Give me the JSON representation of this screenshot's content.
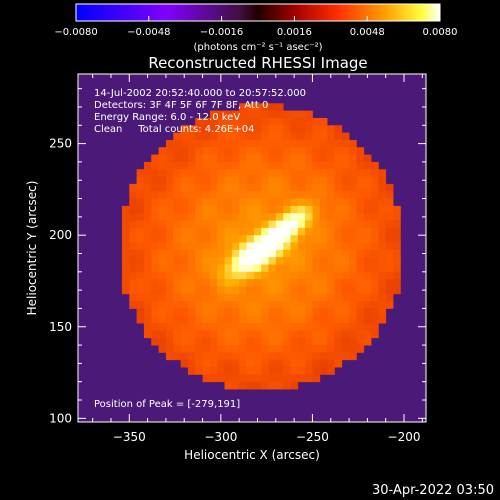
{
  "chart_data": {
    "type": "heatmap",
    "title": "Reconstructed RHESSI Image",
    "xlabel": "Heliocentric X (arcsec)",
    "ylabel": "Heliocentric Y (arcsec)",
    "xlim": [
      -378,
      -188
    ],
    "ylim": [
      98,
      288
    ],
    "x_ticks": [
      -350,
      -300,
      -250,
      -200
    ],
    "y_ticks": [
      100,
      150,
      200,
      250
    ],
    "x_tick_labels": [
      "−350",
      "−300",
      "−250",
      "−200"
    ],
    "y_tick_labels": [
      "100",
      "150",
      "200",
      "250"
    ],
    "colorbar": {
      "min": -0.008,
      "max": 0.008,
      "ticks": [
        -0.008,
        -0.0048,
        -0.0016,
        0.0016,
        0.0048,
        0.008
      ],
      "tick_labels": [
        "−0.0080",
        "−0.0048",
        "−0.0016",
        "0.0016",
        "0.0048",
        "0.0080"
      ],
      "units": "(photons cm⁻² s⁻¹ asec⁻²)"
    },
    "colormap": [
      "#0000ff",
      "#400080",
      "#4b1a78",
      "#7a1210",
      "#c81a00",
      "#ff5a00",
      "#ffb000",
      "#ffff80",
      "#ffffff"
    ],
    "background_color": "#4b1a78",
    "annotations": [
      "14-Jul-2002 20:52:40.000 to 20:57:52.000",
      "Detectors: 3F 4F 5F 6F 7F 8F, Att 0",
      "Energy Range: 6.0 - 12.0 keV",
      "Clean     Total counts: 4.26E+04"
    ],
    "peak_text": "Position of Peak = [-279,191]",
    "peak": [
      -279,
      191
    ],
    "source": {
      "center": [
        -278,
        193
      ],
      "major_axis_angle_deg": 35,
      "components": [
        {
          "center": [
            -279,
            191
          ],
          "sigma_major": 12,
          "sigma_minor": 5,
          "amplitude": 0.0075
        },
        {
          "center": [
            -262,
            206
          ],
          "sigma_major": 9,
          "sigma_minor": 4,
          "amplitude": 0.0045
        },
        {
          "center": [
            -278,
            193
          ],
          "sigma_major": 55,
          "sigma_minor": 52,
          "amplitude": 0.0028
        }
      ],
      "disk_radius": 78,
      "disk_level": 0.0008
    }
  },
  "footer": {
    "timestamp": "30-Apr-2022 03:50"
  }
}
